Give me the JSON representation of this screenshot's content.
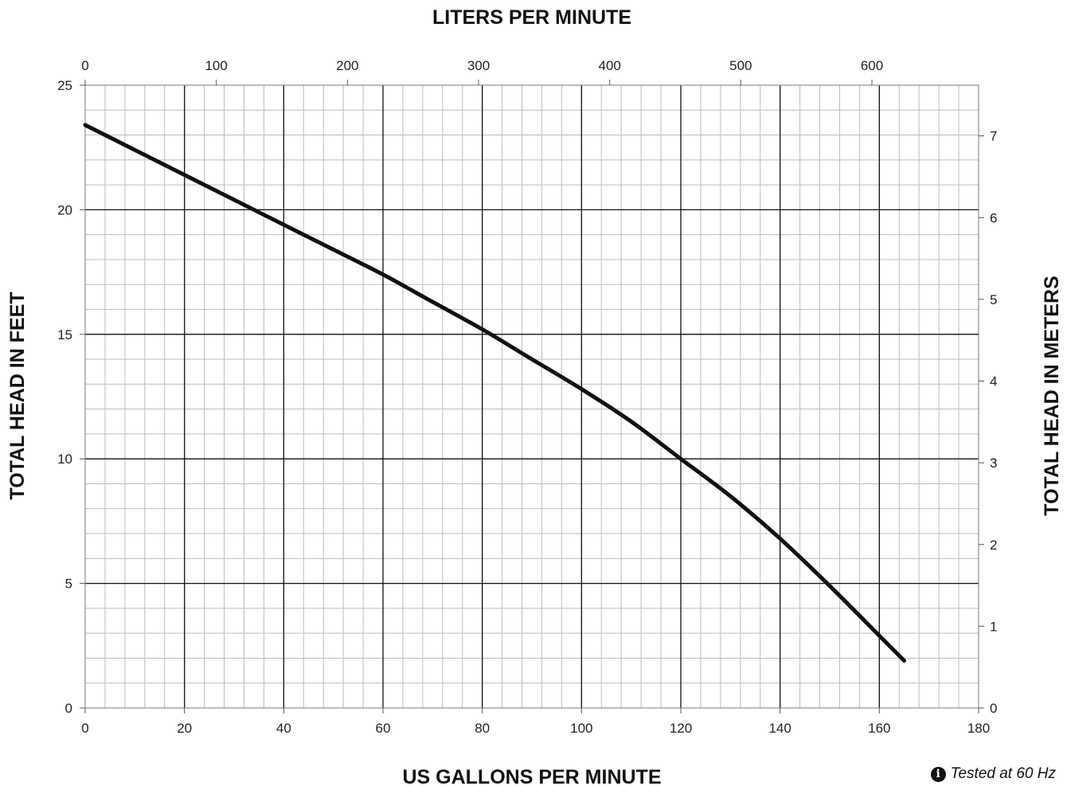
{
  "note": {
    "icon": "info-icon",
    "text": "Tested at 60 Hz"
  },
  "chart_data": {
    "type": "line",
    "title": "",
    "xlabel": "US GALLONS PER MINUTE",
    "ylabel": "TOTAL HEAD IN FEET",
    "x2label": "LITERS PER MINUTE",
    "y2label": "TOTAL HEAD IN METERS",
    "xlim": [
      0,
      180
    ],
    "ylim": [
      0,
      25
    ],
    "x2lim": [
      0,
      681.37
    ],
    "y2lim": [
      0,
      7.62
    ],
    "x_ticks": [
      0,
      20,
      40,
      60,
      80,
      100,
      120,
      140,
      160,
      180
    ],
    "y_ticks": [
      0,
      5,
      10,
      15,
      20,
      25
    ],
    "x2_ticks": [
      0,
      100,
      200,
      300,
      400,
      500,
      600
    ],
    "y2_ticks": [
      0,
      1,
      2,
      3,
      4,
      5,
      6,
      7
    ],
    "x_minor_step": 4,
    "y_minor_step": 1,
    "grid": true,
    "line_color": "#111111",
    "series": [
      {
        "name": "",
        "x": [
          0,
          10,
          20,
          30,
          40,
          50,
          60,
          70,
          80,
          90,
          100,
          110,
          120,
          130,
          140,
          150,
          160,
          165
        ],
        "y": [
          23.4,
          22.4,
          21.4,
          20.4,
          19.4,
          18.4,
          17.4,
          16.3,
          15.2,
          14.0,
          12.8,
          11.5,
          10.0,
          8.5,
          6.8,
          4.9,
          2.9,
          1.9
        ]
      }
    ]
  }
}
